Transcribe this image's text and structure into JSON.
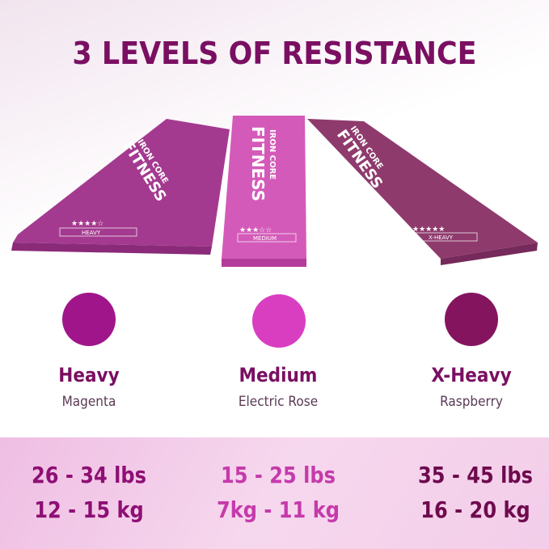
{
  "title": "3 LEVELS OF RESISTANCE",
  "brand": {
    "line1": "IRON CORE",
    "line2": "FITNESS"
  },
  "levels": [
    {
      "name": "Heavy",
      "color_name": "Magenta",
      "band_label": "HEAVY",
      "stars": 4,
      "lbs": "26 - 34 lbs",
      "kg": "12 - 15 kg",
      "swatch": "#a1158b",
      "band": "#a43a8f",
      "text_color": "#8e0f74"
    },
    {
      "name": "Medium",
      "color_name": "Electric Rose",
      "band_label": "MEDIUM",
      "stars": 3,
      "lbs": "15 - 25 lbs",
      "kg": "7kg - 11 kg",
      "swatch": "#d93ec1",
      "band": "#d45ab9",
      "text_color": "#c53aaa"
    },
    {
      "name": "X-Heavy",
      "color_name": "Raspberry",
      "band_label": "X-HEAVY",
      "stars": 5,
      "lbs": "35 - 45 lbs",
      "kg": "16 - 20 kg",
      "swatch": "#85145f",
      "band": "#8f3a6d",
      "text_color": "#6e0a4e"
    }
  ]
}
